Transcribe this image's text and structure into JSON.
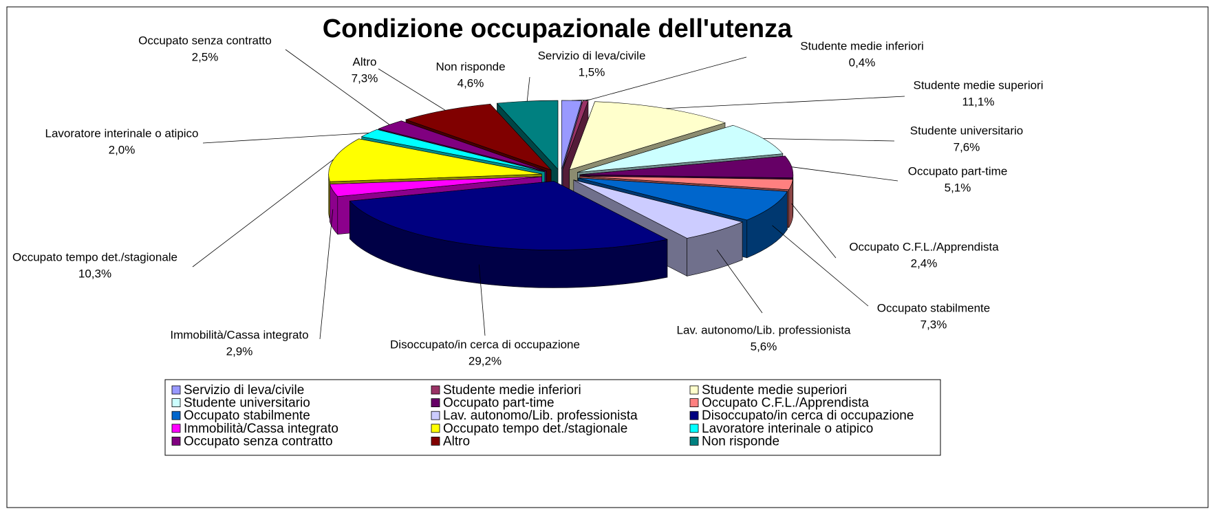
{
  "chart_data": {
    "type": "pie",
    "title": "Condizione occupazionale dell'utenza",
    "categories": [
      "Servizio di leva/civile",
      "Studente medie inferiori",
      "Studente medie superiori",
      "Studente universitario",
      "Occupato part-time",
      "Occupato C.F.L./Apprendista",
      "Occupato stabilmente",
      "Lav. autonomo/Lib. professionista",
      "Disoccupato/in cerca di occupazione",
      "Immobilità/Cassa integrato",
      "Occupato tempo det./stagionale",
      "Lavoratore interinale o atipico",
      "Occupato senza contratto",
      "Altro",
      "Non risponde"
    ],
    "values": [
      1.5,
      0.4,
      11.1,
      7.6,
      5.1,
      2.4,
      7.3,
      5.6,
      29.2,
      2.9,
      10.3,
      2.0,
      2.5,
      7.3,
      4.6
    ],
    "value_labels": [
      "1,5%",
      "0,4%",
      "11,1%",
      "7,6%",
      "5,1%",
      "2,4%",
      "7,3%",
      "5,6%",
      "29,2%",
      "2,9%",
      "10,3%",
      "2,0%",
      "2,5%",
      "7,3%",
      "4,6%"
    ],
    "colors": [
      "#9999ff",
      "#993366",
      "#ffffcc",
      "#ccffff",
      "#660066",
      "#ff8080",
      "#0066cc",
      "#ccccff",
      "#000080",
      "#ff00ff",
      "#ffff00",
      "#00ffff",
      "#800080",
      "#800000",
      "#008080"
    ],
    "legend": "bottom"
  }
}
